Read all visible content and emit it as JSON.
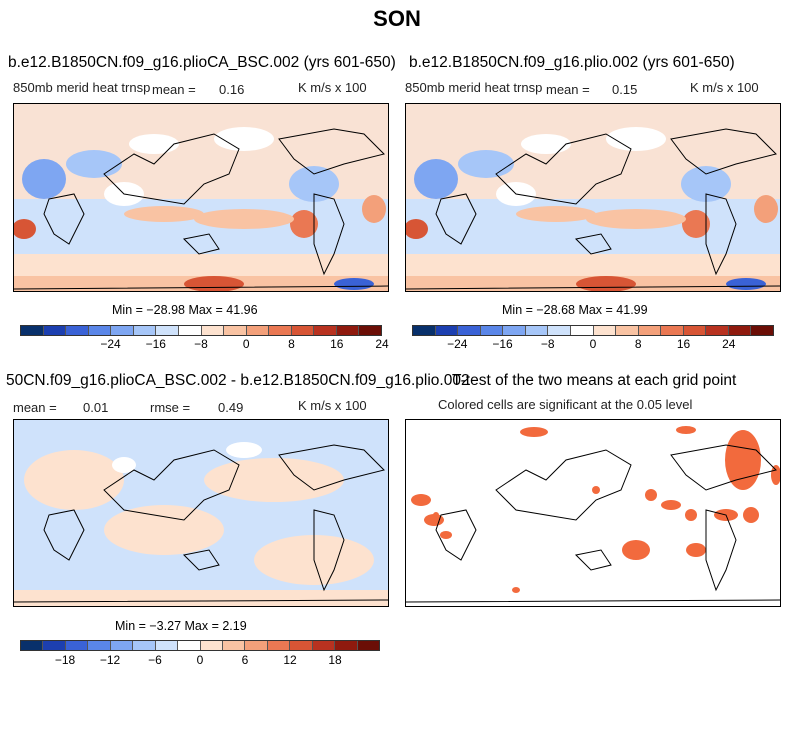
{
  "page_title": "SON",
  "panels": [
    {
      "title": "b.e12.B1850CN.f09_g16.plioCA_BSC.002 (yrs 601-650)",
      "variable": "850mb merid heat trnsp",
      "mean_label": "mean =",
      "mean_value": "0.16",
      "units": "K m/s x 100",
      "minmax": "Min = −28.98 Max =   41.96"
    },
    {
      "title": "b.e12.B1850CN.f09_g16.plio.002 (yrs 601-650)",
      "variable": "850mb merid heat trnsp",
      "mean_label": "mean =",
      "mean_value": "0.15",
      "units": "K m/s x 100",
      "minmax": "Min = −28.68 Max =   41.99"
    },
    {
      "title": "50CN.f09_g16.plioCA_BSC.002 - b.e12.B1850CN.f09_g16.plio.002",
      "mean_label": "mean =",
      "mean_value": "0.01",
      "rmse_label": "rmse =",
      "rmse_value": "0.49",
      "units": "K m/s x 100",
      "minmax": "Min = −3.27 Max =   2.19"
    },
    {
      "title": "T-test of the two means at each grid point",
      "subtitle": "Colored cells are significant at the 0.05 level"
    }
  ],
  "colorbar_full": {
    "ticks": [
      "−24",
      "−16",
      "−8",
      "0",
      "8",
      "16",
      "24"
    ],
    "colors": [
      "#08306b",
      "#1c3fb0",
      "#3a62d6",
      "#5a86e8",
      "#7ea6f2",
      "#a6c6f8",
      "#cfe2fb",
      "#ffffff",
      "#fde2cf",
      "#f9c3a3",
      "#f3a07a",
      "#ea7853",
      "#d75535",
      "#b83220",
      "#8f1a0e",
      "#6b0e06"
    ]
  },
  "colorbar_diff": {
    "ticks": [
      "−18",
      "−12",
      "−6",
      "0",
      "6",
      "12",
      "18"
    ],
    "colors": [
      "#08306b",
      "#1c3fb0",
      "#3a62d6",
      "#5a86e8",
      "#7ea6f2",
      "#a6c6f8",
      "#cfe2fb",
      "#ffffff",
      "#fde2cf",
      "#f9c3a3",
      "#f3a07a",
      "#ea7853",
      "#d75535",
      "#b83220",
      "#8f1a0e",
      "#6b0e06"
    ]
  },
  "colors": {
    "significant": "#f26a3d",
    "land_outline": "#000000"
  }
}
